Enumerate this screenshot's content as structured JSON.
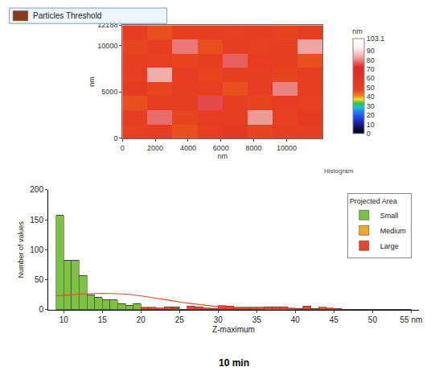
{
  "caption": "10 min",
  "chart_data": [
    {
      "type": "heatmap",
      "x": [
        761.75,
        2285.25,
        3808.75,
        5332.25,
        6855.75,
        8379.25,
        9902.75,
        11426.25
      ],
      "y": [
        761.75,
        2285.25,
        3808.75,
        5332.25,
        6855.75,
        8379.25,
        9902.75,
        11426.25
      ],
      "z": [
        [
          48,
          52,
          46,
          50,
          55,
          47,
          51,
          49
        ],
        [
          50,
          78,
          47,
          52,
          49,
          82,
          48,
          53
        ],
        [
          46,
          51,
          49,
          75,
          50,
          47,
          52,
          48
        ],
        [
          53,
          47,
          50,
          48,
          46,
          51,
          80,
          50
        ],
        [
          49,
          84,
          52,
          47,
          50,
          49,
          47,
          51
        ],
        [
          51,
          48,
          47,
          50,
          77,
          52,
          49,
          46
        ],
        [
          47,
          50,
          79,
          46,
          51,
          48,
          50,
          83
        ],
        [
          52,
          46,
          49,
          51,
          48,
          50,
          47,
          49
        ]
      ],
      "xlabel": "nm",
      "ylabel": "nm",
      "xlim": [
        0,
        12188
      ],
      "ylim": [
        0,
        12188
      ],
      "xticks": [
        0,
        2000,
        4000,
        6000,
        8000,
        10000
      ],
      "yticks": [
        0,
        5000,
        10000,
        12188
      ],
      "colorbar": {
        "title": "nm",
        "range": [
          0,
          103.1
        ],
        "ticks": [
          0,
          10,
          20,
          30,
          40,
          50,
          60,
          70,
          80,
          90,
          103.1
        ]
      },
      "annotations": [
        {
          "text": "Particles Threshold",
          "color": "#8b3a1a"
        },
        {
          "text": "Histogram"
        }
      ]
    },
    {
      "type": "bar",
      "stacked": true,
      "xlabel": "Z-maximum",
      "ylabel": "Number of values",
      "legend": "top-right",
      "legend_title": "Projected Area",
      "grid": false,
      "bins": [
        9,
        10,
        11,
        12,
        13,
        14,
        15,
        16,
        17,
        18,
        19,
        20,
        21,
        22,
        23,
        24,
        25,
        26,
        27,
        28,
        29,
        30,
        31,
        32,
        33,
        34,
        35,
        36,
        37,
        38,
        39,
        40,
        41,
        42,
        43,
        44,
        45,
        46,
        47,
        48,
        49,
        50,
        51,
        52,
        53,
        54,
        55
      ],
      "series": [
        {
          "name": "Small",
          "color": "#7cc242",
          "values": [
            157,
            83,
            83,
            57,
            25,
            20,
            17,
            16,
            10,
            7,
            10,
            0,
            0,
            0,
            0,
            0,
            0,
            0,
            0,
            0,
            0,
            0,
            0,
            0,
            0,
            0,
            0,
            0,
            0,
            0,
            0,
            0,
            0,
            0,
            0,
            0,
            0,
            0,
            0,
            0,
            0,
            0,
            0,
            0,
            0,
            0
          ]
        },
        {
          "name": "Medium",
          "color": "#f5a623",
          "values": [
            0,
            0,
            0,
            0,
            0,
            0,
            0,
            0,
            0,
            0,
            0,
            0,
            0,
            0,
            0,
            2,
            0,
            0,
            0,
            0,
            0,
            0,
            0,
            0,
            0,
            0,
            0,
            0,
            0,
            0,
            0,
            0,
            0,
            0,
            0,
            0,
            0,
            0,
            0,
            0,
            0,
            0,
            0,
            0,
            0,
            0
          ]
        },
        {
          "name": "Large",
          "color": "#e8452c",
          "values": [
            0,
            0,
            0,
            0,
            0,
            0,
            0,
            0,
            0,
            0,
            0,
            4,
            4,
            3,
            5,
            3,
            1,
            6,
            5,
            3,
            2,
            7,
            6,
            4,
            4,
            4,
            4,
            5,
            5,
            5,
            3,
            2,
            6,
            2,
            4,
            3,
            2,
            1,
            1,
            1,
            1,
            1,
            1,
            1,
            1,
            1
          ]
        },
        {
          "type": "line",
          "color": "#e8452c",
          "x": [
            9,
            10,
            12,
            14,
            16,
            18,
            20,
            22,
            24,
            26,
            28,
            30,
            32,
            34,
            36,
            38,
            40
          ],
          "values": [
            23,
            24,
            26,
            27,
            27,
            26,
            23,
            19,
            15,
            11,
            8,
            5,
            3,
            2,
            1,
            0.5,
            0.2
          ]
        }
      ],
      "xlim": [
        8,
        56
      ],
      "ylim": [
        0,
        200
      ],
      "xticks": [
        10,
        15,
        20,
        25,
        30,
        35,
        40,
        45,
        50,
        {
          "value": 55,
          "label": "55 nm"
        }
      ],
      "yticks": [
        0,
        50,
        100,
        150,
        200
      ]
    }
  ]
}
